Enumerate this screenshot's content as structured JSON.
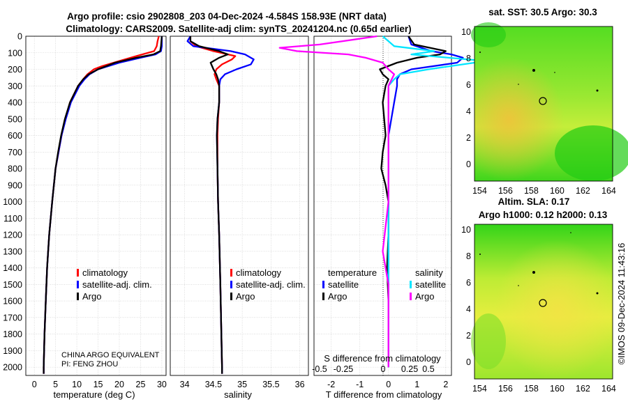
{
  "titles": {
    "line1": "Argo profile: csio 2902808_203 04-Dec-2024 -4.584S 158.93E (NRT data)",
    "line2": "Climatology: CARS2009. Satellite-adj clim: synTS_20241204.nc (0.65d earlier)"
  },
  "credits": {
    "inst": "CHINA ARGO EQUIVALENT",
    "pi": "PI: FENG ZHOU",
    "stamp": "©IMOS 09-Dec-2024 11:43:16"
  },
  "colors": {
    "clim": "#ff0000",
    "sat": "#0000ff",
    "argo": "#000000",
    "sat_s": "#00e5ff",
    "argo_s": "#ff00ff"
  },
  "chart_data": [
    {
      "type": "line",
      "name": "temperature",
      "xlabel": "temperature (deg C)",
      "xlim": [
        -2,
        31
      ],
      "xticks": [
        0,
        5,
        10,
        15,
        20,
        25,
        30
      ],
      "ylim": [
        2050,
        0
      ],
      "yticks": [
        0,
        100,
        200,
        300,
        400,
        500,
        600,
        700,
        800,
        900,
        1000,
        1100,
        1200,
        1300,
        1400,
        1500,
        1600,
        1700,
        1800,
        1900,
        2000
      ],
      "legend": [
        "climatology",
        "satellite-adj. clim.",
        "Argo"
      ],
      "series": [
        {
          "name": "climatology",
          "depth": [
            0,
            30,
            60,
            90,
            120,
            150,
            180,
            200,
            230,
            260,
            300,
            400,
            500,
            600,
            700,
            800,
            900,
            1000,
            1200,
            1400,
            1600,
            1800,
            2000,
            2040
          ],
          "values": [
            29.3,
            29.0,
            28.8,
            28.2,
            24.0,
            20.0,
            16.0,
            14.0,
            12.5,
            11.5,
            10.3,
            8.4,
            7.3,
            6.4,
            5.7,
            5.0,
            4.6,
            4.2,
            3.5,
            3.0,
            2.7,
            2.4,
            2.2,
            2.2
          ]
        },
        {
          "name": "satellite-adj. clim.",
          "depth": [
            0,
            30,
            60,
            90,
            110,
            130,
            160,
            200,
            230,
            260,
            300,
            400,
            500,
            600,
            700,
            800,
            900,
            1000,
            1200,
            1400,
            1600,
            1800,
            2000,
            2040
          ],
          "values": [
            30.0,
            30.0,
            30.0,
            29.8,
            28.5,
            25.0,
            20.0,
            15.0,
            13.0,
            11.8,
            10.6,
            8.6,
            7.4,
            6.4,
            5.7,
            5.0,
            4.6,
            4.2,
            3.5,
            3.0,
            2.7,
            2.4,
            2.2,
            2.2
          ]
        },
        {
          "name": "Argo",
          "depth": [
            0,
            30,
            60,
            90,
            110,
            130,
            160,
            200,
            230,
            260,
            300,
            400,
            500,
            600,
            700,
            800,
            900,
            1000,
            1200,
            1400,
            1600,
            1800,
            2000,
            2040
          ],
          "values": [
            30.0,
            29.9,
            29.8,
            29.6,
            28.0,
            24.0,
            19.0,
            15.0,
            12.8,
            11.5,
            10.3,
            8.4,
            7.2,
            6.3,
            5.6,
            5.0,
            4.6,
            4.2,
            3.5,
            3.0,
            2.7,
            2.4,
            2.2,
            2.2
          ]
        }
      ]
    },
    {
      "type": "line",
      "name": "salinity",
      "xlabel": "salinity",
      "xlim": [
        33.75,
        36.15
      ],
      "xticks": [
        34,
        34.5,
        35,
        35.5,
        36
      ],
      "xtick_labels": [
        "34",
        "34.5",
        "35",
        "35.5",
        "36"
      ],
      "ylim": [
        2050,
        0
      ],
      "legend": [
        "climatology",
        "satellite-adj. clim.",
        "Argo"
      ],
      "series": [
        {
          "name": "climatology",
          "depth": [
            0,
            30,
            60,
            90,
            120,
            140,
            170,
            200,
            230,
            260,
            300,
            400,
            500,
            600,
            800,
            1000,
            1200,
            1500,
            2000,
            2040
          ],
          "values": [
            34.1,
            34.1,
            34.2,
            34.5,
            34.88,
            34.82,
            34.65,
            34.55,
            34.52,
            34.55,
            34.6,
            34.6,
            34.58,
            34.57,
            34.57,
            34.58,
            34.6,
            34.62,
            34.65,
            34.65
          ]
        },
        {
          "name": "satellite-adj. clim.",
          "depth": [
            0,
            30,
            60,
            90,
            110,
            140,
            170,
            200,
            230,
            260,
            300,
            400,
            500,
            600,
            800,
            1000,
            1200,
            1500,
            2000,
            2040
          ],
          "values": [
            34.1,
            34.05,
            34.15,
            34.8,
            35.05,
            35.2,
            35.15,
            34.9,
            34.7,
            34.62,
            34.6,
            34.6,
            34.57,
            34.56,
            34.57,
            34.58,
            34.6,
            34.62,
            34.65,
            34.65
          ]
        },
        {
          "name": "Argo",
          "depth": [
            0,
            30,
            60,
            90,
            110,
            130,
            160,
            200,
            230,
            260,
            300,
            400,
            500,
            600,
            800,
            1000,
            1200,
            1500,
            2000,
            2040
          ],
          "values": [
            34.1,
            34.1,
            34.25,
            34.6,
            34.75,
            34.6,
            34.45,
            34.5,
            34.55,
            34.58,
            34.6,
            34.6,
            34.57,
            34.56,
            34.57,
            34.58,
            34.6,
            34.62,
            34.65,
            34.65
          ]
        }
      ]
    },
    {
      "type": "line",
      "name": "difference from climatology",
      "xlabel": "T difference from climatology",
      "xlim": [
        -2.6,
        2.2
      ],
      "xticks": [
        -2,
        -1,
        0,
        1,
        2
      ],
      "top_label": "S difference from climatology",
      "top_ticks": [
        "-0.5",
        "-0.25",
        "0",
        "0.25",
        "0.5"
      ],
      "ylim": [
        2050,
        0
      ],
      "legend_titles": [
        "temperature",
        "salinity"
      ],
      "legend_left": [
        "satellite",
        "Argo"
      ],
      "legend_right": [
        "satellite",
        "Argo"
      ],
      "series": [
        {
          "name": "temperature satellite",
          "depth": [
            0,
            50,
            90,
            110,
            130,
            160,
            200,
            230,
            260,
            300,
            400,
            500,
            600,
            800,
            1000,
            1300,
            1600,
            2000
          ],
          "values": [
            0.7,
            0.8,
            1.5,
            2.2,
            2.6,
            2.4,
            0.8,
            0.4,
            0.3,
            0.3,
            0.2,
            0.1,
            0.0,
            0.0,
            0.0,
            0.0,
            0.0,
            0.0
          ]
        },
        {
          "name": "temperature Argo",
          "depth": [
            0,
            50,
            90,
            110,
            130,
            160,
            200,
            230,
            260,
            300,
            400,
            500,
            600,
            700,
            800,
            900,
            1000,
            1200,
            1400,
            1600,
            2000
          ],
          "values": [
            0.7,
            0.9,
            2.0,
            1.8,
            1.0,
            0.3,
            -0.3,
            -0.2,
            0.0,
            -0.1,
            -0.2,
            -0.15,
            -0.1,
            -0.2,
            -0.25,
            -0.1,
            0.0,
            0.0,
            -0.05,
            0.0,
            0.0
          ]
        },
        {
          "name": "salinity satellite",
          "depth": [
            0,
            60,
            90,
            110,
            150,
            200,
            230,
            260,
            300,
            400,
            1000,
            2000
          ],
          "values": [
            -0.05,
            0.05,
            0.4,
            0.2,
            0.85,
            0.35,
            0.1,
            0.05,
            0.0,
            0.0,
            0.0,
            0.0
          ]
        },
        {
          "name": "salinity Argo",
          "depth": [
            0,
            50,
            70,
            90,
            110,
            130,
            160,
            200,
            230,
            300,
            400,
            1000,
            1300,
            1500,
            2000
          ],
          "values": [
            -0.1,
            -0.6,
            -0.95,
            -0.8,
            -0.35,
            -0.2,
            -0.05,
            0.0,
            0.05,
            0.0,
            0.0,
            0.0,
            -0.05,
            0.0,
            0.0
          ]
        }
      ]
    },
    {
      "type": "heatmap",
      "name": "satellite SST map",
      "title": "sat. SST: 30.5 Argo: 30.3",
      "xticks": [
        "154",
        "156",
        "158",
        "160",
        "162",
        "164"
      ],
      "yticks": [
        "10",
        "8",
        "6",
        "4",
        "2",
        "0"
      ]
    },
    {
      "type": "heatmap",
      "name": "altimetry SLA map",
      "title1": "Altim. SLA: 0.17",
      "title2": "Argo h1000: 0.12 h2000: 0.13",
      "xticks": [
        "154",
        "156",
        "158",
        "160",
        "162",
        "164"
      ],
      "yticks": [
        "10",
        "8",
        "6",
        "4",
        "2",
        "0"
      ]
    }
  ]
}
